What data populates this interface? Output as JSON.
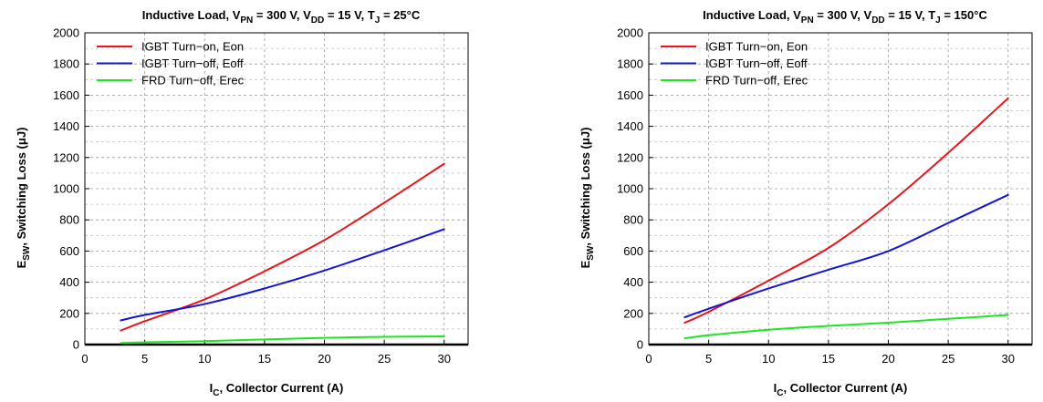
{
  "chart_data": [
    {
      "type": "line",
      "title": {
        "prefix": "Inductive Load, V",
        "sub1": "PN",
        "mid1": " = 300 V, V",
        "sub2": "DD",
        "mid2": " = 15 V, T",
        "sub3": "J",
        "suffix": " = 25°C"
      },
      "xlabel": {
        "main": "I",
        "sub": "C",
        "rest": ", Collector Current (A)"
      },
      "ylabel": {
        "main": "E",
        "sub": "SW",
        "rest": ", Switching Loss (μJ)"
      },
      "xlim": [
        0,
        32
      ],
      "ylim": [
        0,
        2000
      ],
      "xticks": [
        "0",
        "5",
        "10",
        "15",
        "20",
        "25",
        "30"
      ],
      "yticks": [
        "0",
        "200",
        "400",
        "600",
        "800",
        "1000",
        "1200",
        "1400",
        "1600",
        "1800",
        "2000"
      ],
      "grid": true,
      "legend_position": "top-left",
      "series": [
        {
          "name": "IGBT Turn−on, Eon",
          "color": "#e8141c",
          "x": [
            3,
            5,
            10,
            15,
            20,
            25,
            30
          ],
          "y": [
            90,
            150,
            290,
            470,
            670,
            910,
            1160
          ]
        },
        {
          "name": "IGBT Turn−off, Eoff",
          "color": "#1414d2",
          "x": [
            3,
            5,
            10,
            15,
            20,
            25,
            30
          ],
          "y": [
            155,
            190,
            260,
            360,
            475,
            605,
            740
          ]
        },
        {
          "name": "FRD Turn−off, Erec",
          "color": "#1ee61e",
          "x": [
            3,
            5,
            10,
            15,
            20,
            25,
            30
          ],
          "y": [
            10,
            15,
            22,
            33,
            43,
            50,
            53
          ]
        }
      ]
    },
    {
      "type": "line",
      "title": {
        "prefix": "Inductive Load, V",
        "sub1": "PN",
        "mid1": " = 300 V, V",
        "sub2": "DD",
        "mid2": " = 15 V, T",
        "sub3": "J",
        "suffix": " = 150°C"
      },
      "xlabel": {
        "main": "I",
        "sub": "C",
        "rest": ", Collector Current (A)"
      },
      "ylabel": {
        "main": "E",
        "sub": "SW",
        "rest": ", Switching Loss (μJ)"
      },
      "xlim": [
        0,
        32
      ],
      "ylim": [
        0,
        2000
      ],
      "xticks": [
        "0",
        "5",
        "10",
        "15",
        "20",
        "25",
        "30"
      ],
      "yticks": [
        "0",
        "200",
        "400",
        "600",
        "800",
        "1000",
        "1200",
        "1400",
        "1600",
        "1800",
        "2000"
      ],
      "grid": true,
      "legend_position": "top-left",
      "series": [
        {
          "name": "IGBT Turn−on, Eon",
          "color": "#e8141c",
          "x": [
            3,
            5,
            10,
            15,
            20,
            25,
            30
          ],
          "y": [
            140,
            210,
            410,
            620,
            900,
            1230,
            1580
          ]
        },
        {
          "name": "IGBT Turn−off, Eoff",
          "color": "#1414d2",
          "x": [
            3,
            5,
            10,
            15,
            20,
            25,
            30
          ],
          "y": [
            175,
            230,
            360,
            480,
            600,
            780,
            960
          ]
        },
        {
          "name": "FRD Turn−off, Erec",
          "color": "#1ee61e",
          "x": [
            3,
            5,
            10,
            15,
            20,
            25,
            30
          ],
          "y": [
            40,
            60,
            95,
            120,
            140,
            165,
            190
          ]
        }
      ]
    }
  ]
}
